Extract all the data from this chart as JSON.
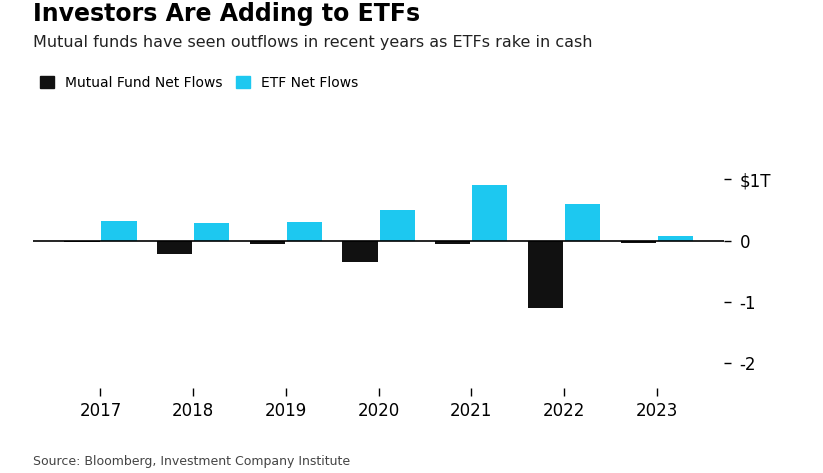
{
  "years": [
    2017,
    2018,
    2019,
    2020,
    2021,
    2022,
    2023
  ],
  "etf_flows": [
    0.32,
    0.28,
    0.3,
    0.5,
    0.9,
    0.6,
    0.07
  ],
  "mutual_flows": [
    -0.03,
    -0.22,
    -0.06,
    -0.35,
    -0.05,
    -1.1,
    -0.04
  ],
  "etf_color": "#1DC8F0",
  "mutual_color": "#111111",
  "background_color": "#ffffff",
  "title": "Investors Are Adding to ETFs",
  "subtitle": "Mutual funds have seen outflows in recent years as ETFs rake in cash",
  "legend_etf": "ETF Net Flows",
  "legend_mutual": "Mutual Fund Net Flows",
  "source": "Source: Bloomberg, Investment Company Institute",
  "ytick_labels": [
    "$1T",
    "0",
    "-1",
    "-2"
  ],
  "ytick_values": [
    1.0,
    0.0,
    -1.0,
    -2.0
  ],
  "ylim": [
    -2.4,
    1.3
  ],
  "bar_width": 0.38,
  "title_fontsize": 17,
  "subtitle_fontsize": 11.5,
  "legend_fontsize": 10,
  "source_fontsize": 9,
  "tick_fontsize": 12
}
